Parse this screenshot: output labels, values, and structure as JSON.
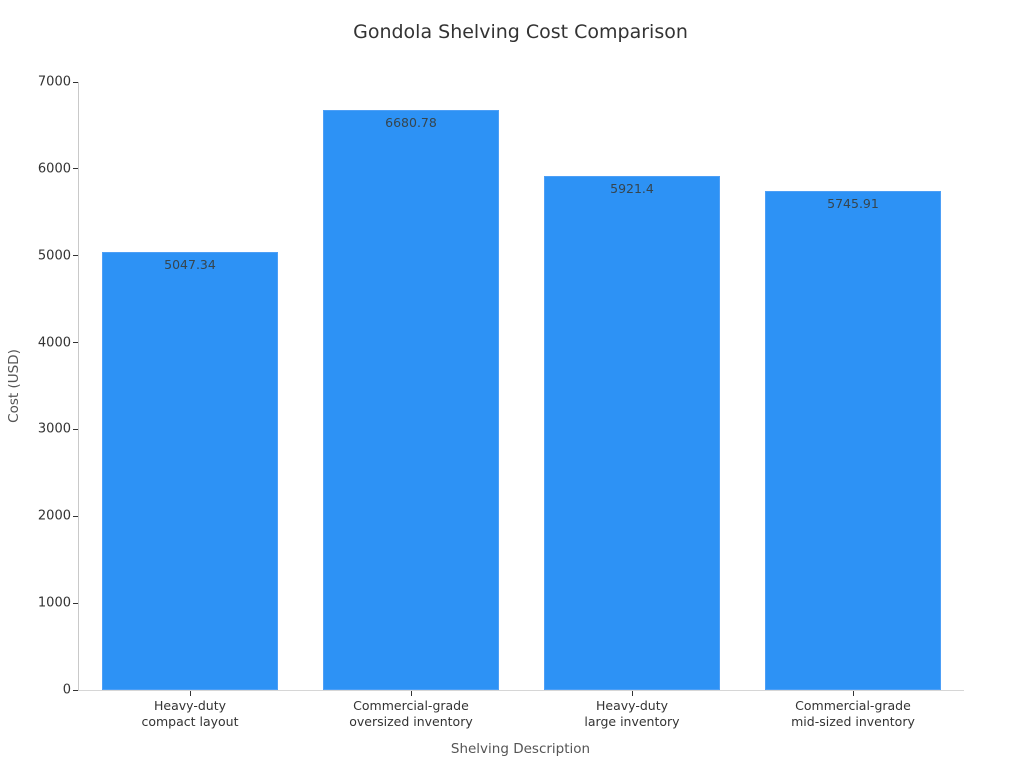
{
  "colors": {
    "bar_fill": "#2D92F5",
    "bar_edge": "#4d9ff6",
    "tick_text": "#333333",
    "axis_title_text": "#555555",
    "spine": "#c9c9c9",
    "background": "#ffffff"
  },
  "chart_data": {
    "type": "bar",
    "title": "Gondola Shelving Cost Comparison",
    "xlabel": "Shelving Description",
    "ylabel": "Cost (USD)",
    "categories": [
      "Heavy-duty\ncompact layout",
      "Commercial-grade\noversized inventory",
      "Heavy-duty\nlarge inventory",
      "Commercial-grade\nmid-sized inventory"
    ],
    "values": [
      5047.34,
      6680.78,
      5921.4,
      5745.91
    ],
    "value_labels": [
      "5047.34",
      "6680.78",
      "5921.4",
      "5745.91"
    ],
    "ylim": [
      0,
      7000
    ],
    "yticks": [
      0,
      1000,
      2000,
      3000,
      4000,
      5000,
      6000,
      7000
    ],
    "grid": "off",
    "legend": "none",
    "bar_color": "#2D92F5"
  }
}
